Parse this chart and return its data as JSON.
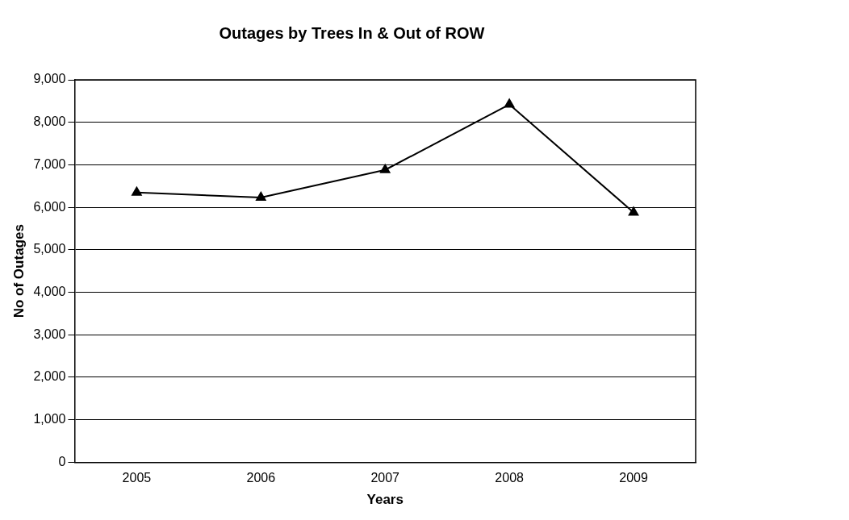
{
  "chart_data": {
    "type": "line",
    "title": "Outages by Trees In & Out of ROW",
    "xlabel": "Years",
    "ylabel": "No of Outages",
    "categories": [
      "2005",
      "2006",
      "2007",
      "2008",
      "2009"
    ],
    "series": [
      {
        "color": "#000000",
        "values": [
          6350,
          6230,
          6880,
          8420,
          5880
        ]
      }
    ],
    "ylim": [
      0,
      9000
    ],
    "yticks": [
      {
        "value": 0,
        "label": "0"
      },
      {
        "value": 1000,
        "label": "1,000"
      },
      {
        "value": 2000,
        "label": "2,000"
      },
      {
        "value": 3000,
        "label": "3,000"
      },
      {
        "value": 4000,
        "label": "4,000"
      },
      {
        "value": 5000,
        "label": "5,000"
      },
      {
        "value": 6000,
        "label": "6,000"
      },
      {
        "value": 7000,
        "label": "7,000"
      },
      {
        "value": 8000,
        "label": "8,000"
      },
      {
        "value": 9000,
        "label": "9,000"
      }
    ],
    "grid": "y",
    "marker": "triangle",
    "line_style": "solid"
  }
}
